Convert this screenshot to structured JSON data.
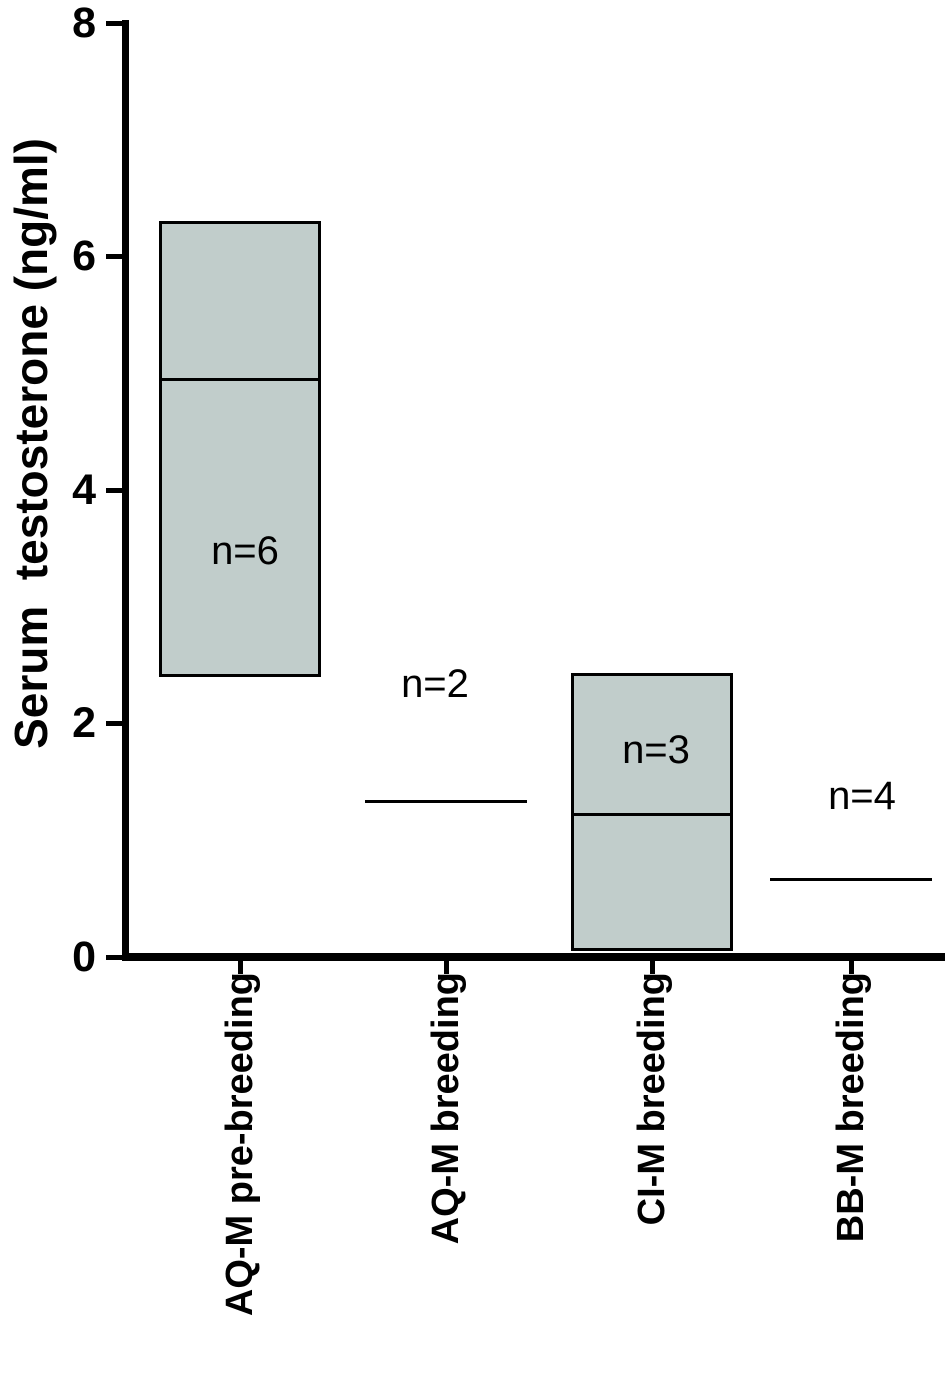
{
  "chart_data": {
    "type": "box",
    "title": "",
    "ylabel": "Serum  testosterone (ng/ml)",
    "xlabel": "",
    "ylim": [
      0,
      8
    ],
    "yticks": [
      0,
      2,
      4,
      6,
      8
    ],
    "grid": false,
    "legend": false,
    "categories": [
      "AQ-M pre-breeding",
      "AQ-M breeding",
      "CI-M breeding",
      "BB-M breeding"
    ],
    "groups": [
      {
        "label": "AQ-M pre-breeding",
        "n_label": "n=6",
        "n": 6,
        "style": "box",
        "max": 6.3,
        "median": 4.95,
        "min": 2.4
      },
      {
        "label": "AQ-M breeding",
        "n_label": "n=2",
        "n": 2,
        "style": "line",
        "value": 1.33
      },
      {
        "label": "CI-M breeding",
        "n_label": "n=3",
        "n": 3,
        "style": "box",
        "max": 2.43,
        "median": 1.22,
        "min": 0.05
      },
      {
        "label": "BB-M breeding",
        "n_label": "n=4",
        "n": 4,
        "style": "line",
        "value": 0.66
      }
    ],
    "colors": {
      "box_fill": "#c1cdcb",
      "box_border": "#000000",
      "axis": "#000000",
      "text": "#000000",
      "background": "#ffffff"
    }
  }
}
